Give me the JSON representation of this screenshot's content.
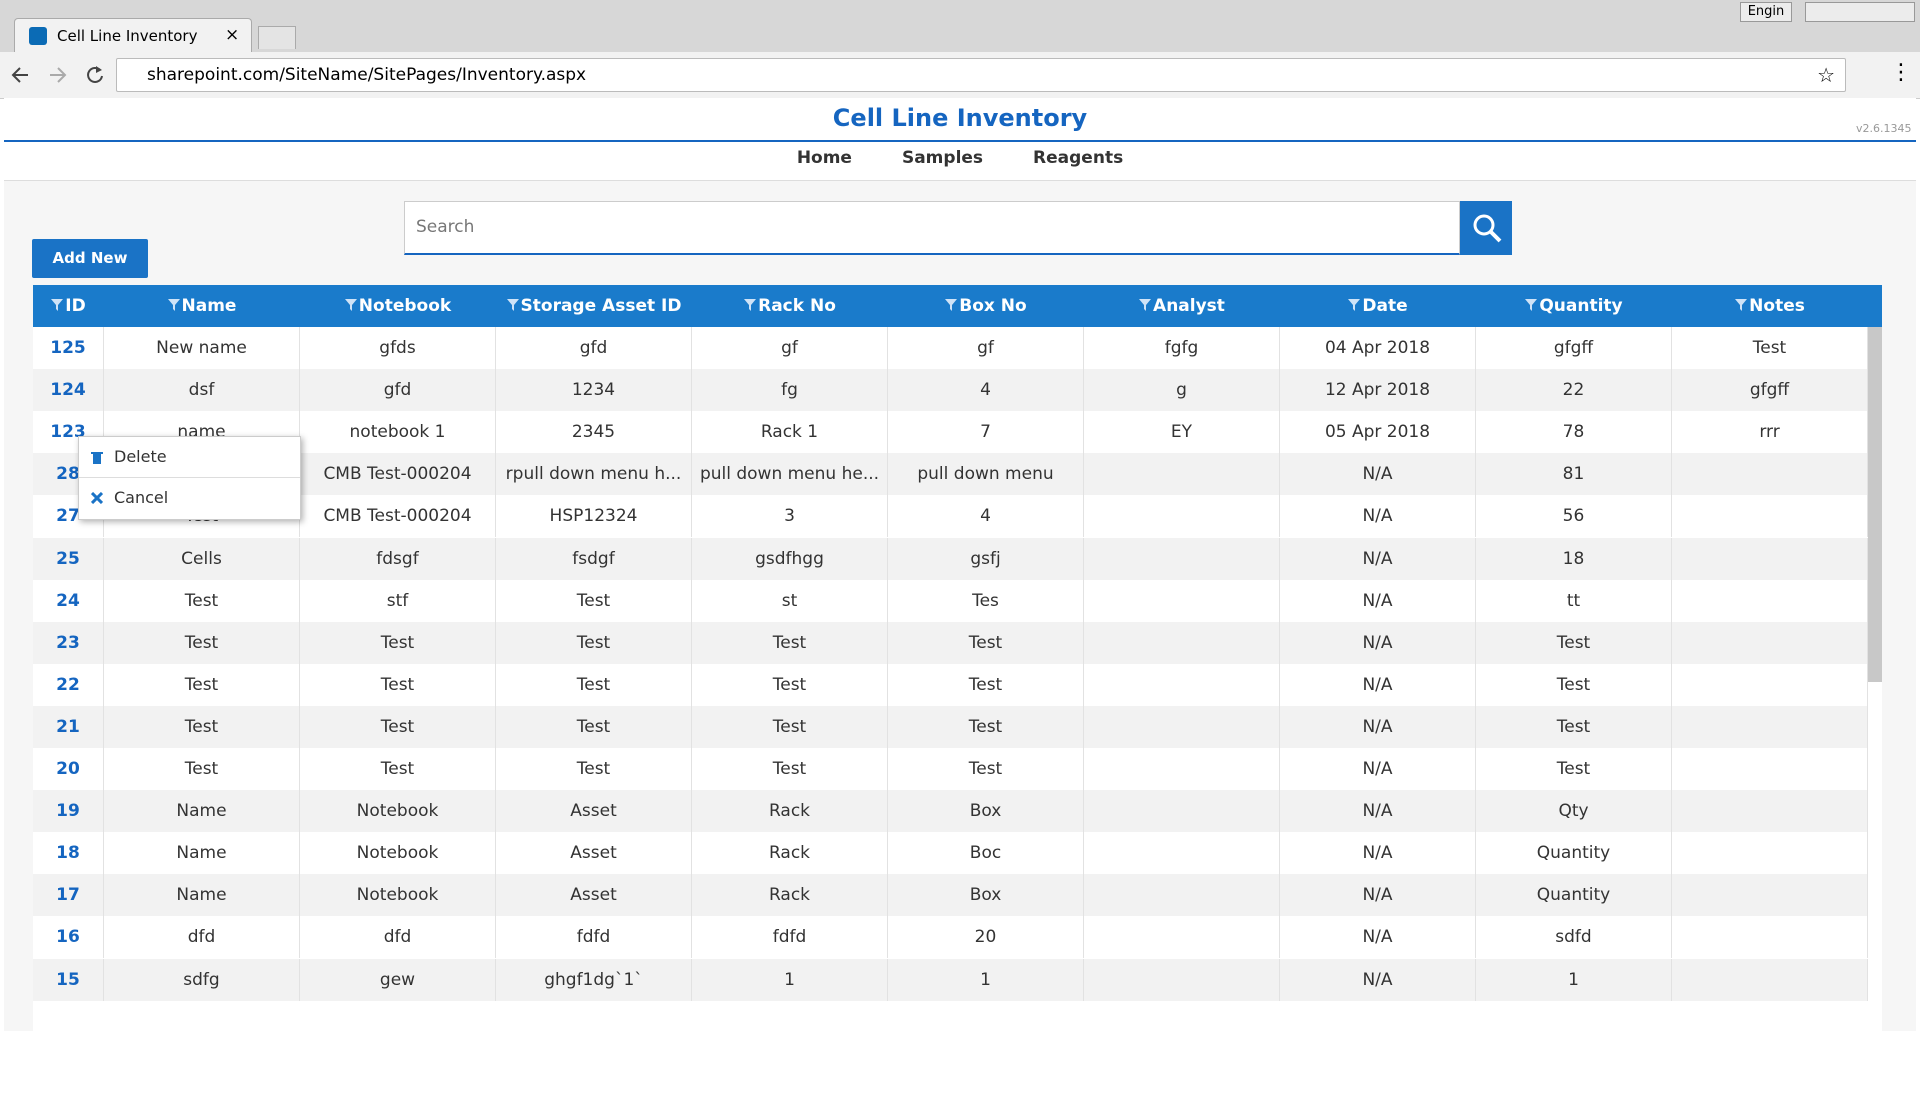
{
  "browser": {
    "tab_title": "Cell Line Inventory",
    "url": "sharepoint.com/SiteName/SitePages/Inventory.aspx",
    "user": "Engin"
  },
  "header": {
    "title": "Cell Line Inventory",
    "version": "v2.6.1345",
    "nav": [
      "Home",
      "Samples",
      "Reagents"
    ]
  },
  "search": {
    "placeholder": "Search"
  },
  "add_button": "Add New",
  "table": {
    "columns": [
      "ID",
      "Name",
      "Notebook",
      "Storage Asset ID",
      "Rack No",
      "Box No",
      "Analyst",
      "Date",
      "Quantity",
      "Notes"
    ],
    "rows": [
      [
        125,
        "New name",
        "gfds",
        "gfd",
        "gf",
        "gf",
        "fgfg",
        "04 Apr 2018",
        "gfgff",
        "Test"
      ],
      [
        124,
        "dsf",
        "gfd",
        "1234",
        "fg",
        "4",
        "g",
        "12 Apr 2018",
        "22",
        "gfgff"
      ],
      [
        123,
        "name",
        "notebook 1",
        "2345",
        "Rack 1",
        "7",
        "EY",
        "05 Apr 2018",
        "78",
        "rrr"
      ],
      [
        28,
        null,
        "CMB Test-000204",
        "rpull down menu h...",
        "pull down menu he...",
        "pull down menu",
        null,
        "N/A",
        "81",
        null
      ],
      [
        27,
        "Test",
        "CMB Test-000204",
        "HSP12324",
        "3",
        "4",
        null,
        "N/A",
        "56",
        null
      ],
      [
        25,
        "Cells",
        "fdsgf",
        "fsdgf",
        "gsdfhgg",
        "gsfj",
        null,
        "N/A",
        "18",
        null
      ],
      [
        24,
        "Test",
        "stf",
        "Test",
        "st",
        "Tes",
        null,
        "N/A",
        "tt",
        null
      ],
      [
        23,
        "Test",
        "Test",
        "Test",
        "Test",
        "Test",
        null,
        "N/A",
        "Test",
        null
      ],
      [
        22,
        "Test",
        "Test",
        "Test",
        "Test",
        "Test",
        null,
        "N/A",
        "Test",
        null
      ],
      [
        21,
        "Test",
        "Test",
        "Test",
        "Test",
        "Test",
        null,
        "N/A",
        "Test",
        null
      ],
      [
        20,
        "Test",
        "Test",
        "Test",
        "Test",
        "Test",
        null,
        "N/A",
        "Test",
        null
      ],
      [
        19,
        "Name",
        "Notebook",
        "Asset",
        "Rack",
        "Box",
        null,
        "N/A",
        "Qty",
        null
      ],
      [
        18,
        "Name",
        "Notebook",
        "Asset",
        "Rack",
        "Boc",
        null,
        "N/A",
        "Quantity",
        null
      ],
      [
        17,
        "Name",
        "Notebook",
        "Asset",
        "Rack",
        "Box",
        null,
        "N/A",
        "Quantity",
        null
      ],
      [
        16,
        "dfd",
        "dfd",
        "fdfd",
        "fdfd",
        "20",
        null,
        "N/A",
        "sdfd",
        null
      ],
      [
        15,
        "sdfg",
        "gew",
        "ghgf1dg`1`",
        "1",
        "1",
        null,
        "N/A",
        "1",
        null
      ]
    ]
  },
  "context_menu": [
    "Delete",
    "Cancel"
  ]
}
